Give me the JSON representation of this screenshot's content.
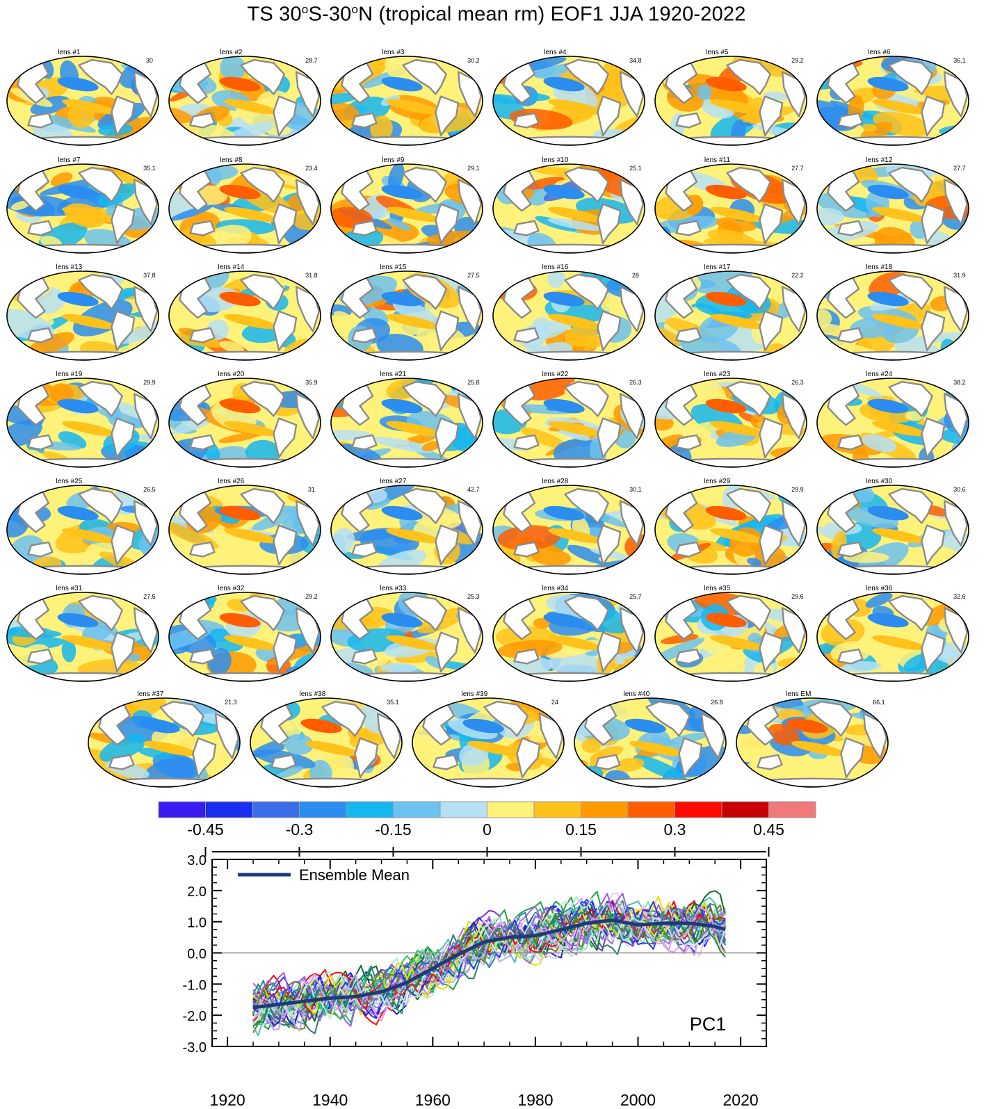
{
  "figure": {
    "title_prefix": "TS 30",
    "title_deg1": "o",
    "title_mid": "S-30",
    "title_deg2": "o",
    "title_suffix": "N (tropical mean rm) EOF1 JJA 1920-2022"
  },
  "chart_data": [
    {
      "type": "heatmap",
      "description_kind": "map-panels",
      "panels": [
        {
          "label": "lens #1",
          "pct": "30"
        },
        {
          "label": "lens #2",
          "pct": "28.7"
        },
        {
          "label": "lens #3",
          "pct": "30.2"
        },
        {
          "label": "lens #4",
          "pct": "34.8"
        },
        {
          "label": "lens #5",
          "pct": "29.2"
        },
        {
          "label": "lens #6",
          "pct": "36.1"
        },
        {
          "label": "lens #7",
          "pct": "35.1"
        },
        {
          "label": "lens #8",
          "pct": "23.4"
        },
        {
          "label": "lens #9",
          "pct": "29.1"
        },
        {
          "label": "lens #10",
          "pct": "25.1"
        },
        {
          "label": "lens #11",
          "pct": "27.7"
        },
        {
          "label": "lens #12",
          "pct": "27.7"
        },
        {
          "label": "lens #13",
          "pct": "37.8"
        },
        {
          "label": "lens #14",
          "pct": "31.8"
        },
        {
          "label": "lens #15",
          "pct": "27.5"
        },
        {
          "label": "lens #16",
          "pct": "28"
        },
        {
          "label": "lens #17",
          "pct": "22.2"
        },
        {
          "label": "lens #18",
          "pct": "31.9"
        },
        {
          "label": "lens #19",
          "pct": "29.9"
        },
        {
          "label": "lens #20",
          "pct": "35.9"
        },
        {
          "label": "lens #21",
          "pct": "25.8"
        },
        {
          "label": "lens #22",
          "pct": "26.3"
        },
        {
          "label": "lens #23",
          "pct": "26.3"
        },
        {
          "label": "lens #24",
          "pct": "38.2"
        },
        {
          "label": "lens #25",
          "pct": "26.5"
        },
        {
          "label": "lens #26",
          "pct": "31"
        },
        {
          "label": "lens #27",
          "pct": "42.7"
        },
        {
          "label": "lens #28",
          "pct": "30.1"
        },
        {
          "label": "lens #29",
          "pct": "29.9"
        },
        {
          "label": "lens #30",
          "pct": "30.6"
        },
        {
          "label": "lens #31",
          "pct": "27.5"
        },
        {
          "label": "lens #32",
          "pct": "29.2"
        },
        {
          "label": "lens #33",
          "pct": "25.3"
        },
        {
          "label": "lens #34",
          "pct": "25.7"
        },
        {
          "label": "lens #35",
          "pct": "29.6"
        },
        {
          "label": "lens #36",
          "pct": "32.6"
        },
        {
          "label": "lens #37",
          "pct": "21.3"
        },
        {
          "label": "lens #38",
          "pct": "35.1"
        },
        {
          "label": "lens #39",
          "pct": "24"
        },
        {
          "label": "lens #40",
          "pct": "26.8"
        },
        {
          "label": "lens EM",
          "pct": "66.1"
        }
      ],
      "colorbar": {
        "colors": [
          "#3a1cf2",
          "#1a2ef0",
          "#3a6ee8",
          "#2b8df0",
          "#16b6f0",
          "#6cc2f0",
          "#b6e0f4",
          "#fff27a",
          "#ffc21a",
          "#ff9a00",
          "#ff5e00",
          "#ff0a00",
          "#c90000",
          "#f07a7a"
        ],
        "tick_labels": [
          "-0.45",
          "-0.3",
          "-0.15",
          "0",
          "0.15",
          "0.3",
          "0.45"
        ],
        "tick_values": [
          -0.45,
          -0.3,
          -0.15,
          0,
          0.15,
          0.3,
          0.45
        ],
        "level_min": -0.525,
        "level_step": 0.075
      }
    },
    {
      "type": "line",
      "xlim": [
        1917,
        2025
      ],
      "ylim": [
        -3.0,
        3.0
      ],
      "x_ticks": [
        1920,
        1940,
        1960,
        1980,
        2000,
        2020
      ],
      "y_ticks": [
        3.0,
        2.0,
        1.0,
        0.0,
        -1.0,
        -2.0,
        -3.0
      ],
      "y_tick_labels": [
        "3.0",
        "2.0",
        "1.0",
        "0.0",
        "-1.0",
        "-2.0",
        "-3.0"
      ],
      "annotation": "PC1",
      "legend": {
        "label": "Ensemble Mean",
        "position": "top-left"
      },
      "zero_line": true,
      "x_start": 1925,
      "x_end": 2017,
      "ensemble_mean": {
        "name": "Ensemble Mean",
        "color": "#1f3a7a",
        "x": [
          1925,
          1930,
          1935,
          1940,
          1945,
          1950,
          1955,
          1960,
          1965,
          1970,
          1975,
          1980,
          1985,
          1990,
          1995,
          2000,
          2005,
          2010,
          2015,
          2017
        ],
        "values": [
          -1.75,
          -1.65,
          -1.55,
          -1.45,
          -1.4,
          -1.25,
          -0.95,
          -0.5,
          -0.05,
          0.35,
          0.5,
          0.55,
          0.75,
          0.95,
          1.05,
          0.9,
          0.95,
          0.95,
          0.85,
          0.75
        ]
      },
      "member_colors": [
        "#1a1ad6",
        "#7b2fd8",
        "#a96bdf",
        "#c9a2f0",
        "#0b6b2a",
        "#1aa34a",
        "#2fc46a",
        "#7ee6a6",
        "#1b8f8a",
        "#4fbfb0",
        "#e9c8f4",
        "#b6e6cf",
        "#ff0000",
        "#e8e000",
        "#5a8a0a",
        "#3030ff",
        "#9d5ce0",
        "#c0f0d0",
        "#2a7a6a",
        "#d8a0ec"
      ]
    }
  ]
}
